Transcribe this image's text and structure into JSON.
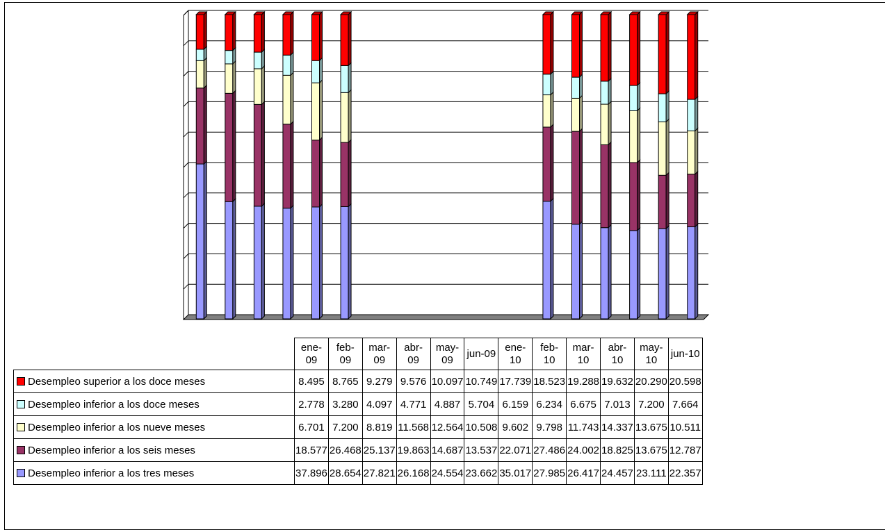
{
  "chart_data": {
    "type": "bar",
    "stacked": true,
    "style": "3d-column",
    "grid": true,
    "legend_placement": "table-left",
    "categories": [
      "ene-09",
      "feb-09",
      "mar-09",
      "abr-09",
      "may-09",
      "jun-09",
      "ene-10",
      "feb-10",
      "mar-10",
      "abr-10",
      "may-10",
      "jun-10"
    ],
    "category_heads": [
      [
        "ene-",
        "09"
      ],
      [
        "feb-",
        "09"
      ],
      [
        "mar-",
        "09"
      ],
      [
        "abr-",
        "09"
      ],
      [
        "may-",
        "09"
      ],
      [
        "jun-09"
      ],
      [
        "ene-",
        "10"
      ],
      [
        "feb-",
        "10"
      ],
      [
        "mar-",
        "10"
      ],
      [
        "abr-",
        "10"
      ],
      [
        "may-",
        "10"
      ],
      [
        "jun-10"
      ]
    ],
    "bars_drawn": [
      true,
      true,
      true,
      true,
      true,
      true,
      false,
      false,
      false,
      false,
      false,
      false,
      true,
      true,
      true,
      true,
      true,
      true
    ],
    "series": [
      {
        "name": "Desempleo superior a los doce meses",
        "color": "#FF0000",
        "labels": [
          "8.495",
          "8.765",
          "9.279",
          "9.576",
          "10.097",
          "10.749",
          "17.739",
          "18.523",
          "19.288",
          "19.632",
          "20.290",
          "20.598"
        ],
        "values": [
          8.495,
          8.765,
          9.279,
          9.576,
          10.097,
          10.749,
          17.739,
          18.523,
          19.288,
          19.632,
          20.29,
          20.598
        ]
      },
      {
        "name": "Desempleo inferior a los doce meses",
        "color": "#CCFFFF",
        "labels": [
          "2.778",
          "3.280",
          "4.097",
          "4.771",
          "4.887",
          "5.704",
          "6.159",
          "6.234",
          "6.675",
          "7.013",
          "7.200",
          "7.664"
        ],
        "values": [
          2.778,
          3.28,
          4.097,
          4.771,
          4.887,
          5.704,
          6.159,
          6.234,
          6.675,
          7.013,
          7.2,
          7.664
        ]
      },
      {
        "name": "Desempleo inferior a los nueve meses",
        "color": "#FFFFCC",
        "labels": [
          "6.701",
          "7.200",
          "8.819",
          "11.568",
          "12.564",
          "10.508",
          "9.602",
          "9.798",
          "11.743",
          "14.337",
          "13.675",
          "10.511"
        ],
        "values": [
          6.701,
          7.2,
          8.819,
          11.568,
          12.564,
          10.508,
          9.602,
          9.798,
          11.743,
          14.337,
          13.675,
          10.511
        ]
      },
      {
        "name": "Desempleo inferior a los seis meses",
        "color": "#993366",
        "labels": [
          "18.577",
          "26.468",
          "25.137",
          "19.863",
          "14.687",
          "13.537",
          "22.071",
          "27.486",
          "24.002",
          "18.825",
          "13.675",
          "12.787"
        ],
        "values": [
          18.577,
          26.468,
          25.137,
          19.863,
          14.687,
          13.537,
          22.071,
          27.486,
          24.002,
          18.825,
          13.675,
          12.787
        ]
      },
      {
        "name": "Desempleo inferior a los tres meses",
        "color": "#9999FF",
        "labels": [
          "37.896",
          "28.654",
          "27.821",
          "26.168",
          "24.554",
          "23.662",
          "35.017",
          "27.985",
          "26.417",
          "24.457",
          "23.111",
          "22.357"
        ],
        "values": [
          37.896,
          28.654,
          27.821,
          26.168,
          24.554,
          23.662,
          35.017,
          27.985,
          26.417,
          24.457,
          23.111,
          22.357
        ]
      }
    ]
  }
}
